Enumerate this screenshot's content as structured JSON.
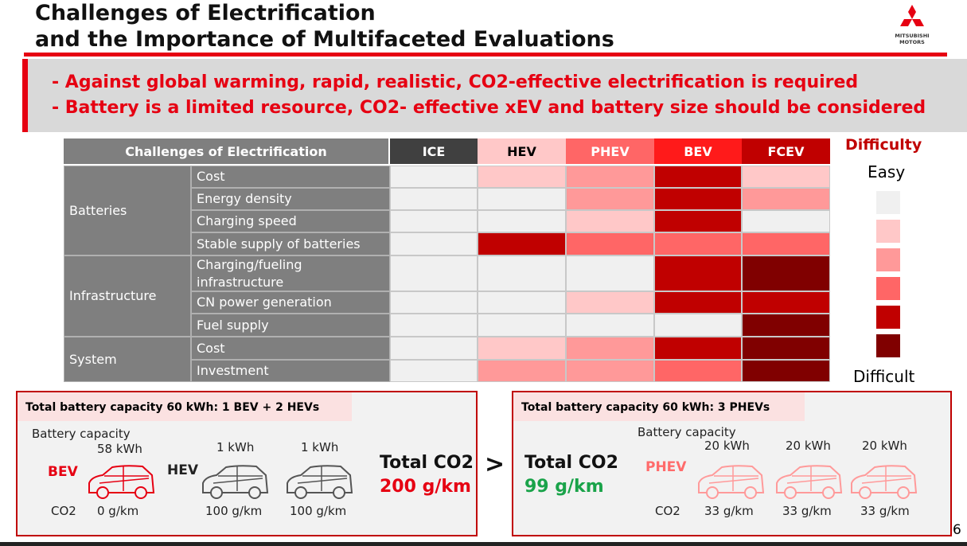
{
  "title": [
    "Challenges of Electrification",
    "and the Importance of Multifaceted Evaluations"
  ],
  "logo": {
    "text": [
      "MITSUBISHI",
      "MOTORS"
    ],
    "color": "#e60012"
  },
  "banner": [
    "- Against global warming, rapid, realistic, CO2-effective electrification is required",
    "- Battery is a limited resource, CO2- effective xEV and battery size should be considered"
  ],
  "table": {
    "header": "Challenges of Electrification",
    "columns": [
      {
        "label": "ICE",
        "bg": "#404040",
        "fg": "#ffffff"
      },
      {
        "label": "HEV",
        "bg": "#ffc8c8",
        "fg": "#000000"
      },
      {
        "label": "PHEV",
        "bg": "#ff6666",
        "fg": "#ffffff"
      },
      {
        "label": "BEV",
        "bg": "#ff1a1a",
        "fg": "#ffffff"
      },
      {
        "label": "FCEV",
        "bg": "#c00000",
        "fg": "#ffffff"
      }
    ],
    "groups": [
      {
        "label": "Batteries",
        "rows": 4
      },
      {
        "label": "Infrastructure",
        "rows": 3
      },
      {
        "label": "System",
        "rows": 2
      }
    ],
    "rows": [
      {
        "label": "Cost",
        "levels": [
          0,
          1,
          2,
          4,
          1
        ]
      },
      {
        "label": "Energy density",
        "levels": [
          0,
          0,
          2,
          4,
          2
        ]
      },
      {
        "label": "Charging speed",
        "levels": [
          0,
          0,
          1,
          4,
          0
        ]
      },
      {
        "label": "Stable supply of batteries",
        "levels": [
          0,
          4,
          3,
          3,
          3
        ]
      },
      {
        "label": "Charging/fueling infrastructure",
        "levels": [
          0,
          0,
          0,
          4,
          5
        ]
      },
      {
        "label": "CN power generation",
        "levels": [
          0,
          0,
          1,
          4,
          4
        ]
      },
      {
        "label": "Fuel supply",
        "levels": [
          0,
          0,
          0,
          0,
          5
        ]
      },
      {
        "label": "Cost",
        "levels": [
          0,
          1,
          2,
          4,
          5
        ]
      },
      {
        "label": "Investment",
        "levels": [
          0,
          2,
          2,
          3,
          5
        ]
      }
    ]
  },
  "legend": {
    "title": "Difficulty",
    "easy": "Easy",
    "difficult": "Difficult",
    "colors": [
      "#f0f0f0",
      "#ffc8c8",
      "#ff9999",
      "#ff6666",
      "#c00000",
      "#800000"
    ]
  },
  "left_box": {
    "header": "Total battery capacity 60 kWh: 1 BEV + 2 HEVs",
    "capacity_label": "Battery capacity",
    "co2_label": "CO2",
    "bev": "BEV",
    "hev": "HEV",
    "cars": [
      {
        "kwh": "58 kWh",
        "co2": "0 g/km"
      },
      {
        "kwh": "1 kWh",
        "co2": "100 g/km"
      },
      {
        "kwh": "1 kWh",
        "co2": "100 g/km"
      }
    ],
    "total_label": "Total CO2",
    "total_value": "200 g/km"
  },
  "comparison": ">",
  "right_box": {
    "header": "Total battery capacity 60 kWh: 3 PHEVs",
    "capacity_label": "Battery capacity",
    "co2_label": "CO2",
    "phev": "PHEV",
    "cars": [
      {
        "kwh": "20 kWh",
        "co2": "33 g/km"
      },
      {
        "kwh": "20 kWh",
        "co2": "33 g/km"
      },
      {
        "kwh": "20 kWh",
        "co2": "33 g/km"
      }
    ],
    "total_label": "Total CO2",
    "total_value": "99 g/km"
  },
  "page_number": "6"
}
